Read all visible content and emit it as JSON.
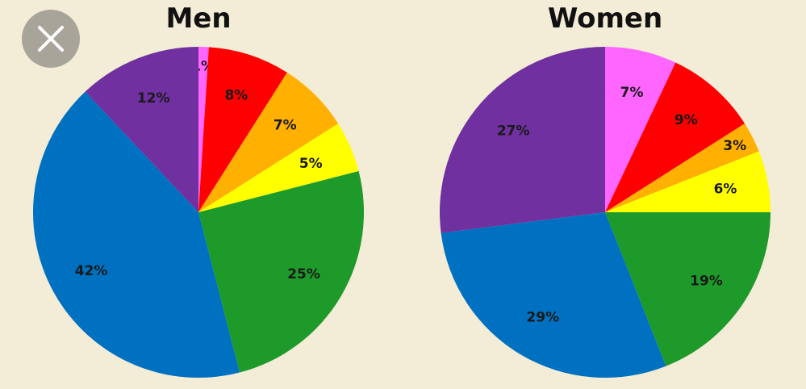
{
  "chart_data": [
    {
      "type": "pie",
      "title": "Men",
      "values": [
        1,
        8,
        7,
        5,
        25,
        42,
        12
      ],
      "value_labels": [
        "1%",
        "8%",
        "7%",
        "5%",
        "25%",
        "42%",
        "12%"
      ],
      "colors": [
        "#ff66ff",
        "#ff0000",
        "#ffb000",
        "#ffff00",
        "#1e9a2a",
        "#0070c0",
        "#7030a0"
      ]
    },
    {
      "type": "pie",
      "title": "Women",
      "values": [
        7,
        9,
        3,
        6,
        19,
        29,
        27
      ],
      "value_labels": [
        "7%",
        "9%",
        "3%",
        "6%",
        "19%",
        "29%",
        "27%"
      ],
      "colors": [
        "#ff66ff",
        "#ff0000",
        "#ffb000",
        "#ffff00",
        "#1e9a2a",
        "#0070c0",
        "#7030a0"
      ]
    }
  ]
}
